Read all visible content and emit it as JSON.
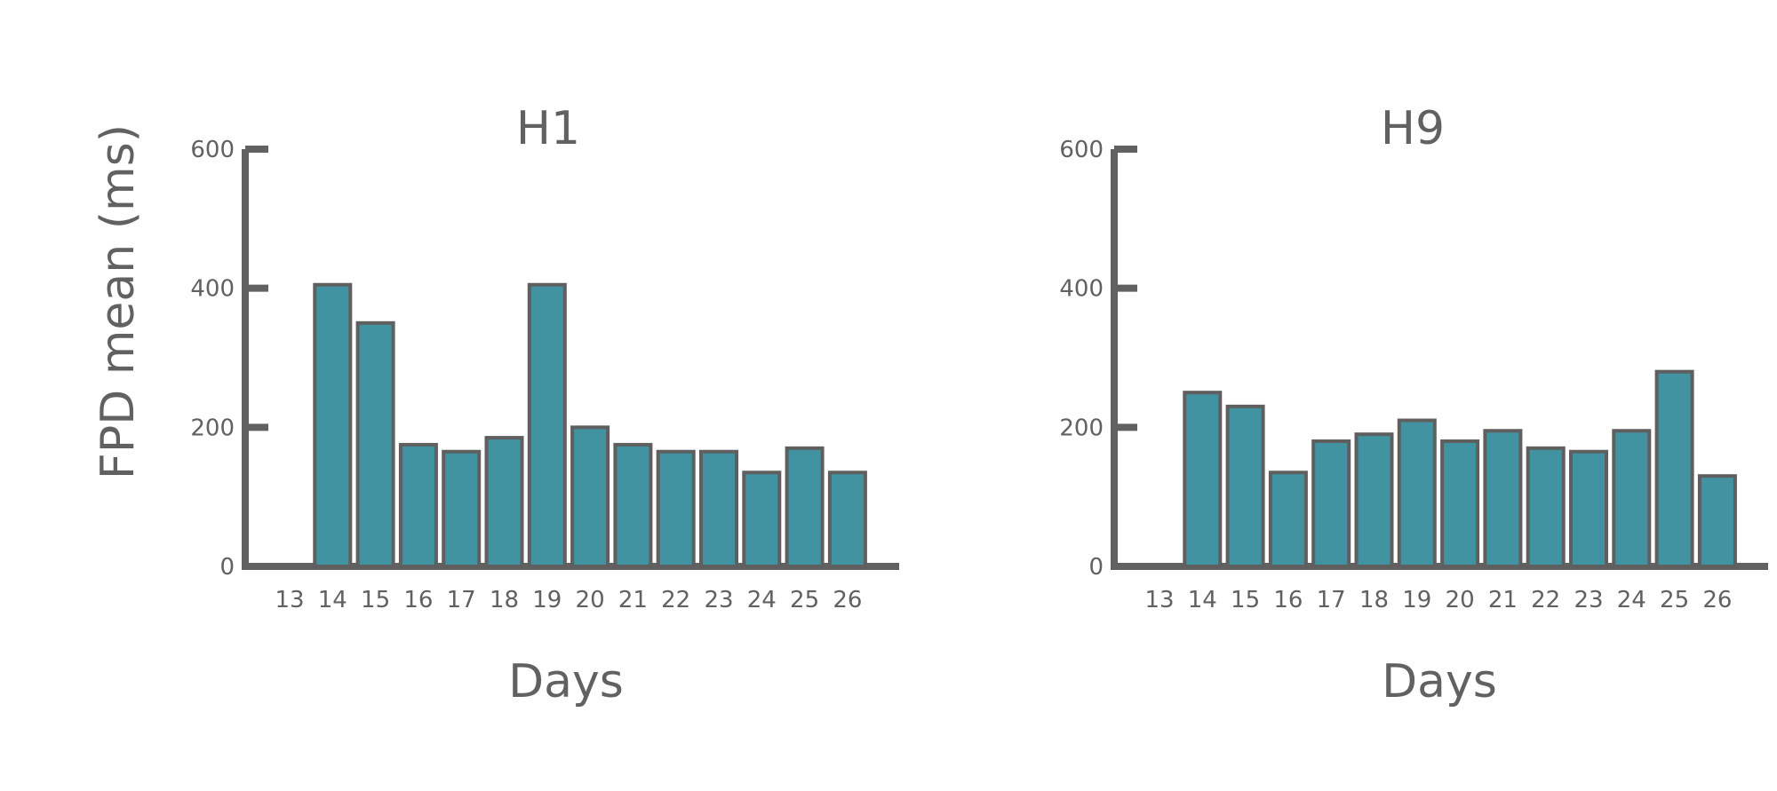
{
  "colors": {
    "bar": "#4293a2",
    "bar_edge": "#5f5f5f",
    "axis": "#616161",
    "text": "#616161"
  },
  "chart_data": [
    {
      "type": "bar",
      "title": "H1",
      "xlabel": "Days",
      "ylabel": "FPD mean (ms)",
      "ylim": [
        0,
        600
      ],
      "yticks": [
        0,
        200,
        400,
        600
      ],
      "grid": false,
      "categories": [
        "13",
        "14",
        "15",
        "16",
        "17",
        "18",
        "19",
        "20",
        "21",
        "22",
        "23",
        "24",
        "25",
        "26"
      ],
      "values": [
        0,
        405,
        350,
        175,
        165,
        185,
        405,
        200,
        175,
        165,
        165,
        135,
        170,
        135
      ]
    },
    {
      "type": "bar",
      "title": "H9",
      "xlabel": "Days",
      "ylabel": "",
      "ylim": [
        0,
        600
      ],
      "yticks": [
        0,
        200,
        400,
        600
      ],
      "grid": false,
      "categories": [
        "13",
        "14",
        "15",
        "16",
        "17",
        "18",
        "19",
        "20",
        "21",
        "22",
        "23",
        "24",
        "25",
        "26"
      ],
      "values": [
        0,
        250,
        230,
        135,
        180,
        190,
        210,
        180,
        195,
        170,
        165,
        195,
        280,
        130
      ]
    }
  ]
}
